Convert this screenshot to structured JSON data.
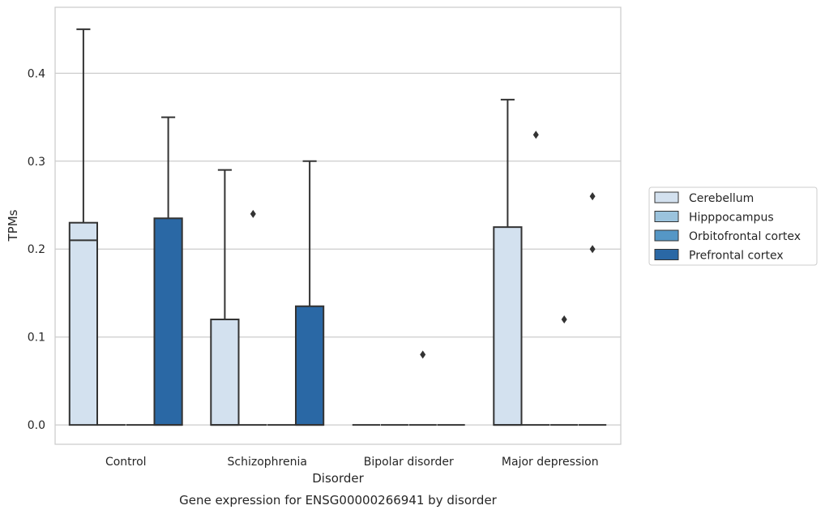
{
  "chart_data": {
    "type": "box",
    "caption": "Gene expression for ENSG00000266941 by disorder",
    "xlabel": "Disorder",
    "ylabel": "TPMs",
    "ylim": [
      -0.022,
      0.475
    ],
    "yticks": [
      "0.0",
      "0.1",
      "0.2",
      "0.3",
      "0.4"
    ],
    "ytick_values": [
      0.0,
      0.1,
      0.2,
      0.3,
      0.4
    ],
    "grid": "horizontal",
    "legend_position": "right",
    "categories": [
      "Control",
      "Schizophrenia",
      "Bipolar disorder",
      "Major depression"
    ],
    "series": [
      {
        "name": "Cerebellum",
        "color": "#d3e1ef",
        "boxes": [
          {
            "whislo": 0.0,
            "q1": 0.0,
            "med": 0.21,
            "q3": 0.23,
            "whishi": 0.45,
            "fliers": []
          },
          {
            "whislo": 0.0,
            "q1": 0.0,
            "med": 0.0,
            "q3": 0.12,
            "whishi": 0.29,
            "fliers": []
          },
          {
            "whislo": 0.0,
            "q1": 0.0,
            "med": 0.0,
            "q3": 0.0,
            "whishi": 0.0,
            "fliers": []
          },
          {
            "whislo": 0.0,
            "q1": 0.0,
            "med": 0.0,
            "q3": 0.225,
            "whishi": 0.37,
            "fliers": []
          }
        ]
      },
      {
        "name": "Hipppocampus",
        "color": "#9bc3dd",
        "boxes": [
          {
            "whislo": 0.0,
            "q1": 0.0,
            "med": 0.0,
            "q3": 0.0,
            "whishi": 0.0,
            "fliers": []
          },
          {
            "whislo": 0.0,
            "q1": 0.0,
            "med": 0.0,
            "q3": 0.0,
            "whishi": 0.0,
            "fliers": [
              0.24
            ]
          },
          {
            "whislo": 0.0,
            "q1": 0.0,
            "med": 0.0,
            "q3": 0.0,
            "whishi": 0.0,
            "fliers": []
          },
          {
            "whislo": 0.0,
            "q1": 0.0,
            "med": 0.0,
            "q3": 0.0,
            "whishi": 0.0,
            "fliers": [
              0.33
            ]
          }
        ]
      },
      {
        "name": "Orbitofrontal cortex",
        "color": "#5597c6",
        "boxes": [
          {
            "whislo": 0.0,
            "q1": 0.0,
            "med": 0.0,
            "q3": 0.0,
            "whishi": 0.0,
            "fliers": []
          },
          {
            "whislo": 0.0,
            "q1": 0.0,
            "med": 0.0,
            "q3": 0.0,
            "whishi": 0.0,
            "fliers": []
          },
          {
            "whislo": 0.0,
            "q1": 0.0,
            "med": 0.0,
            "q3": 0.0,
            "whishi": 0.0,
            "fliers": [
              0.08
            ]
          },
          {
            "whislo": 0.0,
            "q1": 0.0,
            "med": 0.0,
            "q3": 0.0,
            "whishi": 0.0,
            "fliers": [
              0.12
            ]
          }
        ]
      },
      {
        "name": "Prefrontal cortex",
        "color": "#2a68a5",
        "boxes": [
          {
            "whislo": 0.0,
            "q1": 0.0,
            "med": 0.0,
            "q3": 0.235,
            "whishi": 0.35,
            "fliers": []
          },
          {
            "whislo": 0.0,
            "q1": 0.0,
            "med": 0.0,
            "q3": 0.135,
            "whishi": 0.3,
            "fliers": []
          },
          {
            "whislo": 0.0,
            "q1": 0.0,
            "med": 0.0,
            "q3": 0.0,
            "whishi": 0.0,
            "fliers": []
          },
          {
            "whislo": 0.0,
            "q1": 0.0,
            "med": 0.0,
            "q3": 0.0,
            "whishi": 0.0,
            "fliers": [
              0.2,
              0.26
            ]
          }
        ]
      }
    ]
  }
}
